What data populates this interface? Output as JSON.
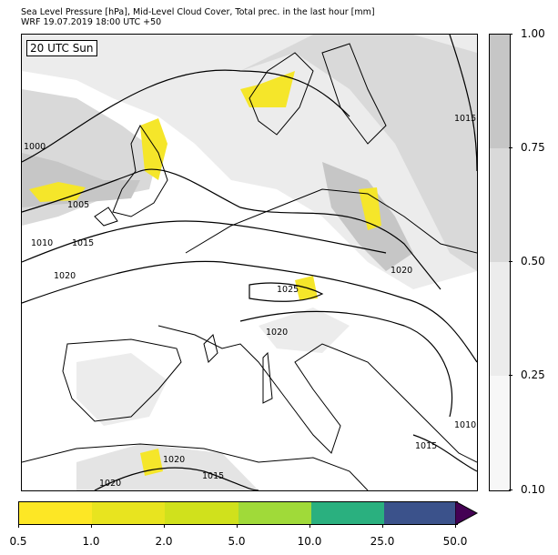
{
  "title": {
    "line1": "Sea Level Pressure [hPa], Mid-Level Cloud Cover, Total prec. in the last hour [mm]",
    "line2": "WRF 19.07.2019 18:00 UTC +50"
  },
  "map": {
    "time_label": "20 UTC Sun",
    "isobar_labels": [
      "1000",
      "1005",
      "1010",
      "1015",
      "1020",
      "1025",
      "1020",
      "1015",
      "1020",
      "1020",
      "1015",
      "1010",
      "1015",
      "1020"
    ],
    "colors": {
      "sea": "#ffffff",
      "land": "#ffffff",
      "cloud_light": "#ececec",
      "cloud_mid": "#d9d9d9",
      "cloud_dark": "#c6c6c6",
      "precip": "#f5e62a"
    }
  },
  "cloud_colorbar": {
    "labels": [
      "1.00",
      "0.75",
      "0.50",
      "0.25",
      "0.10"
    ],
    "colors": [
      "#c6c6c6",
      "#d9d9d9",
      "#ececec",
      "#f7f7f7"
    ]
  },
  "precip_colorbar": {
    "labels": [
      "0.5",
      "1.0",
      "2.0",
      "5.0",
      "10.0",
      "25.0",
      "50.0"
    ],
    "colors": [
      "#fde725",
      "#efe51c",
      "#d0e11c",
      "#a0da39",
      "#4ac16d",
      "#2ab07f",
      "#3b528b"
    ],
    "extend_color": "#440154"
  }
}
